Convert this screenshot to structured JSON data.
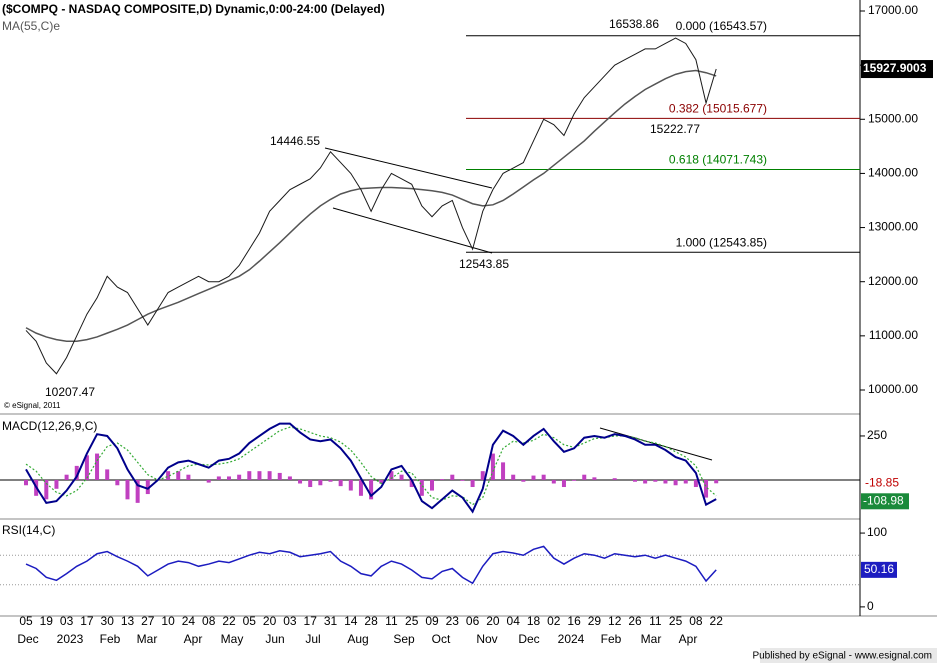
{
  "chart_data": [
    {
      "type": "line",
      "title": "($COMPQ - NASDAQ COMPOSITE,D) Dynamic,0:00-24:00 (Delayed)",
      "copyright": "© eSignal, 2011",
      "categories": [
        "05",
        null,
        "19",
        null,
        "03",
        null,
        "17",
        null,
        "30",
        null,
        "13",
        null,
        "27",
        null,
        "10",
        null,
        "24",
        null,
        "08",
        null,
        "22",
        null,
        "05",
        null,
        "20",
        null,
        "03",
        null,
        "17",
        null,
        "31",
        null,
        "14",
        null,
        "28",
        null,
        "11",
        null,
        "25",
        null,
        "09",
        null,
        "23",
        null,
        "06",
        null,
        "20",
        null,
        "04",
        null,
        "18",
        null,
        "02",
        null,
        "16",
        null,
        "29",
        null,
        "12",
        null,
        "26",
        null,
        "11",
        null,
        "25",
        null,
        "08",
        null,
        "22"
      ],
      "months": [
        "Dec",
        "2023",
        "Feb",
        "Mar",
        "Apr",
        "May",
        "Jun",
        "Jul",
        "Aug",
        "Sep",
        "Oct",
        "Nov",
        "Dec",
        "2024",
        "Feb",
        "Mar",
        "Apr"
      ],
      "series": [
        {
          "color": "#1a1a1a",
          "values": [
            11100,
            10900,
            10500,
            10300,
            10600,
            11000,
            11400,
            11700,
            12100,
            11900,
            11800,
            11500,
            11200,
            11500,
            11800,
            11900,
            12000,
            12100,
            12000,
            12000,
            12100,
            12300,
            12600,
            12900,
            13300,
            13500,
            13700,
            13800,
            13900,
            14100,
            14400,
            14200,
            14000,
            13700,
            13300,
            13700,
            14000,
            13900,
            13800,
            13400,
            13200,
            13400,
            13500,
            13000,
            12600,
            13300,
            13700,
            14000,
            14100,
            14200,
            14600,
            15000,
            14900,
            14700,
            15100,
            15400,
            15600,
            15800,
            16000,
            16100,
            16200,
            16300,
            16300,
            16400,
            16500,
            16400,
            16100,
            15300,
            15927.9003
          ]
        },
        {
          "name": "MA(55,C)e",
          "color": "#555555",
          "values": [
            11150,
            11050,
            10980,
            10930,
            10900,
            10900,
            10930,
            10980,
            11050,
            11120,
            11200,
            11300,
            11400,
            11480,
            11550,
            11620,
            11700,
            11780,
            11860,
            11940,
            12020,
            12100,
            12220,
            12380,
            12550,
            12720,
            12900,
            13080,
            13250,
            13400,
            13520,
            13620,
            13680,
            13720,
            13730,
            13740,
            13740,
            13730,
            13720,
            13700,
            13680,
            13650,
            13600,
            13520,
            13440,
            13400,
            13420,
            13500,
            13620,
            13750,
            13880,
            14000,
            14150,
            14300,
            14450,
            14600,
            14780,
            14950,
            15120,
            15280,
            15420,
            15550,
            15650,
            15750,
            15830,
            15880,
            15900,
            15860,
            15800
          ]
        }
      ],
      "ylim": [
        9575,
        17203
      ],
      "yticks": [
        {
          "value": 17000,
          "label": "17000.00"
        },
        {
          "value": 16000,
          "label": "16000.00"
        },
        {
          "value": 15000,
          "label": "15000.00"
        },
        {
          "value": 14000,
          "label": "14000.00"
        },
        {
          "value": 13000,
          "label": "13000.00"
        },
        {
          "value": 12000,
          "label": "12000.00"
        },
        {
          "value": 11000,
          "label": "11000.00"
        },
        {
          "value": 10000,
          "label": "10000.00"
        }
      ],
      "fib_levels": [
        {
          "label": "0.000 (16543.57)",
          "value": 16543.57,
          "color": "#000000"
        },
        {
          "label": "0.382 (15015.677)",
          "value": 15015.677,
          "color": "#8b0000"
        },
        {
          "label": "0.618 (14071.743)",
          "value": 14071.743,
          "color": "#008000"
        },
        {
          "label": "1.000 (12543.85)",
          "value": 12543.85,
          "color": "#000000"
        }
      ],
      "annotations": [
        "16538.86",
        "15222.77",
        "14446.55",
        "12543.85",
        "10207.47"
      ]
    },
    {
      "type": "macd",
      "title": "MACD(12,26,9,C)",
      "series": [
        {
          "color": "#00008b",
          "values": [
            60,
            -40,
            -130,
            -120,
            -60,
            20,
            150,
            260,
            250,
            180,
            60,
            -30,
            -50,
            0,
            70,
            100,
            110,
            90,
            70,
            110,
            120,
            150,
            210,
            250,
            290,
            320,
            320,
            270,
            230,
            220,
            230,
            180,
            110,
            10,
            -90,
            -40,
            60,
            80,
            0,
            -120,
            -160,
            -110,
            -60,
            -100,
            -180,
            -50,
            200,
            280,
            250,
            200,
            250,
            290,
            220,
            160,
            180,
            240,
            250,
            240,
            260,
            250,
            230,
            200,
            200,
            170,
            130,
            110,
            40,
            -140,
            -108.98
          ]
        },
        {
          "color": "#33aa33",
          "values": [
            90,
            50,
            -20,
            -70,
            -90,
            -60,
            10,
            110,
            190,
            210,
            170,
            100,
            30,
            0,
            20,
            50,
            80,
            90,
            85,
            90,
            100,
            120,
            160,
            200,
            240,
            280,
            300,
            290,
            270,
            250,
            240,
            215,
            170,
            100,
            20,
            -20,
            10,
            50,
            40,
            -30,
            -100,
            -115,
            -90,
            -95,
            -140,
            -100,
            50,
            180,
            220,
            210,
            225,
            260,
            240,
            200,
            185,
            210,
            235,
            240,
            250,
            250,
            240,
            220,
            210,
            190,
            160,
            130,
            80,
            -40,
            -90.13
          ]
        },
        {
          "color": "#c040c0",
          "values": [
            -30,
            -90,
            -110,
            -50,
            30,
            80,
            140,
            150,
            60,
            -30,
            -110,
            -130,
            -80,
            0,
            50,
            50,
            30,
            0,
            -15,
            20,
            20,
            30,
            50,
            50,
            50,
            40,
            20,
            -20,
            -40,
            -30,
            -10,
            -35,
            -60,
            -90,
            -110,
            -20,
            50,
            30,
            -40,
            -90,
            -60,
            5,
            30,
            -5,
            -40,
            50,
            150,
            100,
            30,
            -10,
            25,
            30,
            -20,
            -40,
            -5,
            30,
            15,
            0,
            10,
            0,
            -10,
            -20,
            -10,
            -20,
            -30,
            -20,
            -40,
            -100,
            -18.85
          ]
        }
      ],
      "ylim": [
        -216,
        352
      ],
      "yticks": [
        250
      ]
    },
    {
      "type": "rsi",
      "title": "RSI(14,C)",
      "series": [
        {
          "color": "#1c1cc0",
          "values": [
            58,
            52,
            40,
            36,
            45,
            55,
            62,
            72,
            75,
            68,
            62,
            55,
            42,
            50,
            58,
            62,
            60,
            55,
            58,
            62,
            60,
            65,
            70,
            74,
            72,
            76,
            74,
            68,
            70,
            72,
            75,
            62,
            55,
            45,
            42,
            55,
            62,
            58,
            50,
            40,
            38,
            48,
            52,
            40,
            32,
            55,
            72,
            75,
            73,
            70,
            78,
            82,
            66,
            58,
            66,
            72,
            70,
            66,
            72,
            70,
            68,
            70,
            66,
            70,
            66,
            62,
            55,
            35,
            50.16
          ]
        }
      ],
      "ylim": [
        -11,
        115
      ],
      "yticks": [
        100,
        0
      ],
      "guides": [
        70,
        30
      ]
    }
  ],
  "footer": "Published by eSignal - www.esignal.com"
}
